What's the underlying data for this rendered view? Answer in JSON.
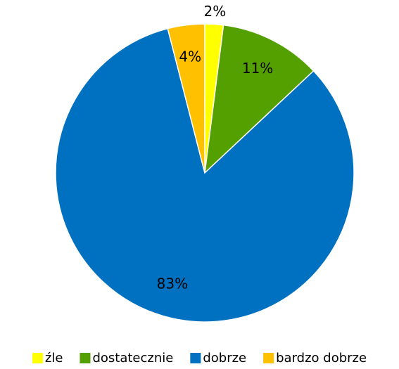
{
  "chart_data": {
    "type": "pie",
    "categories": [
      "źle",
      "dostatecznie",
      "dobrze",
      "bardzo dobrze"
    ],
    "values": [
      2,
      11,
      83,
      4
    ],
    "value_labels": [
      "2%",
      "11%",
      "83%",
      "4%"
    ],
    "colors": [
      "#ffff00",
      "#54a000",
      "#0070c0",
      "#ffc000"
    ],
    "legend": "bottom"
  }
}
